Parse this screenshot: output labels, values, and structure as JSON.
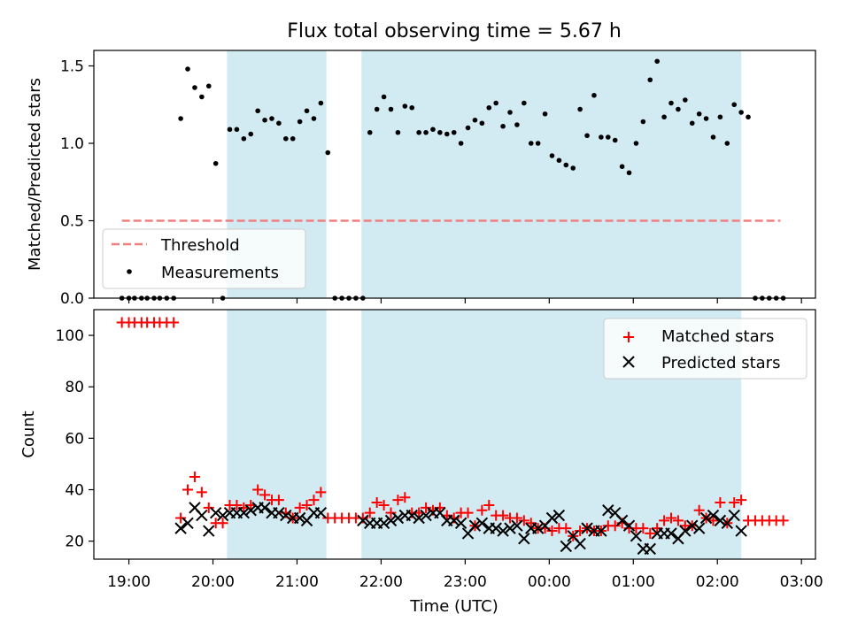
{
  "figure_title": "Flux total observing time = 5.67 h",
  "colors": {
    "shade": "#add8e6",
    "threshold": "#f08080",
    "measurement": "#000000",
    "matched": "#ff0000",
    "predicted": "#000000"
  },
  "chart_data": [
    {
      "type": "scatter",
      "panel": "top",
      "ylabel": "Matched/Predicted stars",
      "xlim": [
        "18:35",
        "03:10"
      ],
      "ylim": [
        0,
        1.6
      ],
      "yticks": [
        "0.0",
        "0.5",
        "1.0",
        "1.5"
      ],
      "legend_placement": "lower-left",
      "shaded_intervals": [
        [
          "20:10",
          "21:21"
        ],
        [
          "21:46",
          "02:17"
        ]
      ],
      "threshold": {
        "name": "Threshold",
        "y": 0.5,
        "x": [
          "18:55",
          "02:45"
        ],
        "style": "dashed"
      },
      "series": [
        {
          "name": "Measurements",
          "x": [
            "18:55",
            "19:00",
            "19:04",
            "19:09",
            "19:13",
            "19:18",
            "19:22",
            "19:27",
            "19:32",
            "19:37",
            "19:42",
            "19:47",
            "19:52",
            "19:57",
            "20:02",
            "20:07",
            "20:12",
            "20:17",
            "20:22",
            "20:27",
            "20:32",
            "20:37",
            "20:42",
            "20:47",
            "20:52",
            "20:57",
            "21:02",
            "21:07",
            "21:12",
            "21:17",
            "21:22",
            "21:27",
            "21:32",
            "21:37",
            "21:42",
            "21:47",
            "21:52",
            "21:57",
            "22:02",
            "22:07",
            "22:12",
            "22:17",
            "22:22",
            "22:27",
            "22:32",
            "22:37",
            "22:42",
            "22:47",
            "22:52",
            "22:57",
            "23:02",
            "23:07",
            "23:12",
            "23:17",
            "23:22",
            "23:27",
            "23:32",
            "23:37",
            "23:42",
            "23:47",
            "23:52",
            "23:57",
            "00:02",
            "00:07",
            "00:12",
            "00:17",
            "00:22",
            "00:27",
            "00:32",
            "00:37",
            "00:42",
            "00:47",
            "00:52",
            "00:57",
            "01:02",
            "01:07",
            "01:12",
            "01:17",
            "01:22",
            "01:27",
            "01:32",
            "01:37",
            "01:42",
            "01:47",
            "01:52",
            "01:57",
            "02:02",
            "02:07",
            "02:12",
            "02:17",
            "02:22",
            "02:27",
            "02:32",
            "02:37",
            "02:42",
            "02:47"
          ],
          "y": [
            0,
            0,
            0,
            0,
            0,
            0,
            0,
            0,
            0,
            1.16,
            1.48,
            1.36,
            1.3,
            1.37,
            0.87,
            0,
            1.09,
            1.09,
            1.03,
            1.06,
            1.21,
            1.15,
            1.16,
            1.13,
            1.03,
            1.03,
            1.14,
            1.21,
            1.16,
            1.26,
            0.94,
            0,
            0,
            0,
            0,
            0,
            1.07,
            1.22,
            1.3,
            1.22,
            1.07,
            1.24,
            1.23,
            1.07,
            1.07,
            1.09,
            1.07,
            1.06,
            1.07,
            1.0,
            1.1,
            1.15,
            1.13,
            1.23,
            1.26,
            1.11,
            1.2,
            1.12,
            1.26,
            1.0,
            1.0,
            1.19,
            0.92,
            0.89,
            0.86,
            0.84,
            1.22,
            1.05,
            1.31,
            1.04,
            1.04,
            1.02,
            0.85,
            0.81,
            1.0,
            1.14,
            1.41,
            1.53,
            1.17,
            1.26,
            1.22,
            1.28,
            1.13,
            1.19,
            1.16,
            1.04,
            1.17,
            1.0,
            1.25,
            1.2,
            1.17,
            0,
            0,
            0,
            0,
            0
          ]
        }
      ]
    },
    {
      "type": "scatter",
      "panel": "bottom",
      "xlabel": "Time (UTC)",
      "ylabel": "Count",
      "xlim": [
        "18:35",
        "03:10"
      ],
      "ylim": [
        13,
        110
      ],
      "xticks": [
        "19:00",
        "20:00",
        "21:00",
        "22:00",
        "23:00",
        "00:00",
        "01:00",
        "02:00",
        "03:00"
      ],
      "yticks": [
        "20",
        "40",
        "60",
        "80",
        "100"
      ],
      "legend_placement": "upper-right",
      "shaded_intervals": [
        [
          "20:10",
          "21:21"
        ],
        [
          "21:46",
          "02:17"
        ]
      ],
      "series": [
        {
          "name": "Matched stars",
          "marker": "plus",
          "x": [
            "18:55",
            "19:00",
            "19:04",
            "19:09",
            "19:13",
            "19:18",
            "19:22",
            "19:27",
            "19:32",
            "19:37",
            "19:42",
            "19:47",
            "19:52",
            "19:57",
            "20:02",
            "20:07",
            "20:12",
            "20:17",
            "20:22",
            "20:27",
            "20:32",
            "20:37",
            "20:42",
            "20:47",
            "20:52",
            "20:57",
            "21:02",
            "21:07",
            "21:12",
            "21:17",
            "21:22",
            "21:27",
            "21:32",
            "21:37",
            "21:42",
            "21:47",
            "21:52",
            "21:57",
            "22:02",
            "22:07",
            "22:12",
            "22:17",
            "22:22",
            "22:27",
            "22:32",
            "22:37",
            "22:42",
            "22:47",
            "22:52",
            "22:57",
            "23:02",
            "23:07",
            "23:12",
            "23:17",
            "23:22",
            "23:27",
            "23:32",
            "23:37",
            "23:42",
            "23:47",
            "23:52",
            "23:57",
            "00:02",
            "00:07",
            "00:12",
            "00:17",
            "00:22",
            "00:27",
            "00:32",
            "00:37",
            "00:42",
            "00:47",
            "00:52",
            "00:57",
            "01:02",
            "01:07",
            "01:12",
            "01:17",
            "01:22",
            "01:27",
            "01:32",
            "01:37",
            "01:42",
            "01:47",
            "01:52",
            "01:57",
            "02:02",
            "02:07",
            "02:12",
            "02:17",
            "02:22",
            "02:27",
            "02:32",
            "02:37",
            "02:42",
            "02:47"
          ],
          "y": [
            105,
            105,
            105,
            105,
            105,
            105,
            105,
            105,
            105,
            29,
            40,
            45,
            39,
            33,
            27,
            27,
            34,
            34,
            33,
            34,
            40,
            38,
            36,
            36,
            31,
            29,
            33,
            34,
            36,
            39,
            29,
            29,
            29,
            29,
            29,
            29,
            31,
            35,
            34,
            31,
            36,
            37,
            31,
            31,
            33,
            32,
            33,
            30,
            29,
            31,
            31,
            26,
            32,
            34,
            30,
            30,
            29,
            29,
            28,
            27,
            25,
            25,
            24,
            25,
            25,
            22,
            24,
            25,
            24,
            24,
            26,
            26,
            27,
            25,
            25,
            25,
            23,
            25,
            28,
            29,
            28,
            26,
            26,
            32,
            29,
            28,
            35,
            27,
            35,
            36,
            28,
            28,
            28,
            28,
            28,
            28
          ]
        },
        {
          "name": "Predicted stars",
          "marker": "x",
          "x": [
            "19:37",
            "19:42",
            "19:47",
            "19:52",
            "19:57",
            "20:02",
            "20:07",
            "20:12",
            "20:17",
            "20:22",
            "20:27",
            "20:32",
            "20:37",
            "20:42",
            "20:47",
            "20:52",
            "20:57",
            "21:02",
            "21:07",
            "21:12",
            "21:17",
            "21:47",
            "21:52",
            "21:57",
            "22:02",
            "22:07",
            "22:12",
            "22:17",
            "22:22",
            "22:27",
            "22:32",
            "22:37",
            "22:42",
            "22:47",
            "22:52",
            "22:57",
            "23:02",
            "23:07",
            "23:12",
            "23:17",
            "23:22",
            "23:27",
            "23:32",
            "23:37",
            "23:42",
            "23:47",
            "23:52",
            "23:57",
            "00:02",
            "00:07",
            "00:12",
            "00:17",
            "00:22",
            "00:27",
            "00:32",
            "00:37",
            "00:42",
            "00:47",
            "00:52",
            "00:57",
            "01:02",
            "01:07",
            "01:12",
            "01:17",
            "01:22",
            "01:27",
            "01:32",
            "01:37",
            "01:42",
            "01:47",
            "01:52",
            "01:57",
            "02:02",
            "02:07",
            "02:12",
            "02:17"
          ],
          "y": [
            25,
            27,
            33,
            30,
            24,
            31,
            30,
            31,
            31,
            31,
            32,
            33,
            33,
            31,
            31,
            30,
            29,
            29,
            28,
            31,
            31,
            28,
            27,
            27,
            27,
            28,
            29,
            30,
            30,
            29,
            30,
            31,
            31,
            28,
            28,
            27,
            23,
            26,
            27,
            25,
            25,
            24,
            25,
            26,
            21,
            25,
            25,
            26,
            29,
            30,
            18,
            22,
            19,
            25,
            24,
            24,
            32,
            31,
            28,
            26,
            22,
            17,
            17,
            23,
            23,
            23,
            21,
            24,
            26,
            25,
            29,
            30,
            28,
            27,
            30,
            24
          ]
        }
      ]
    }
  ]
}
